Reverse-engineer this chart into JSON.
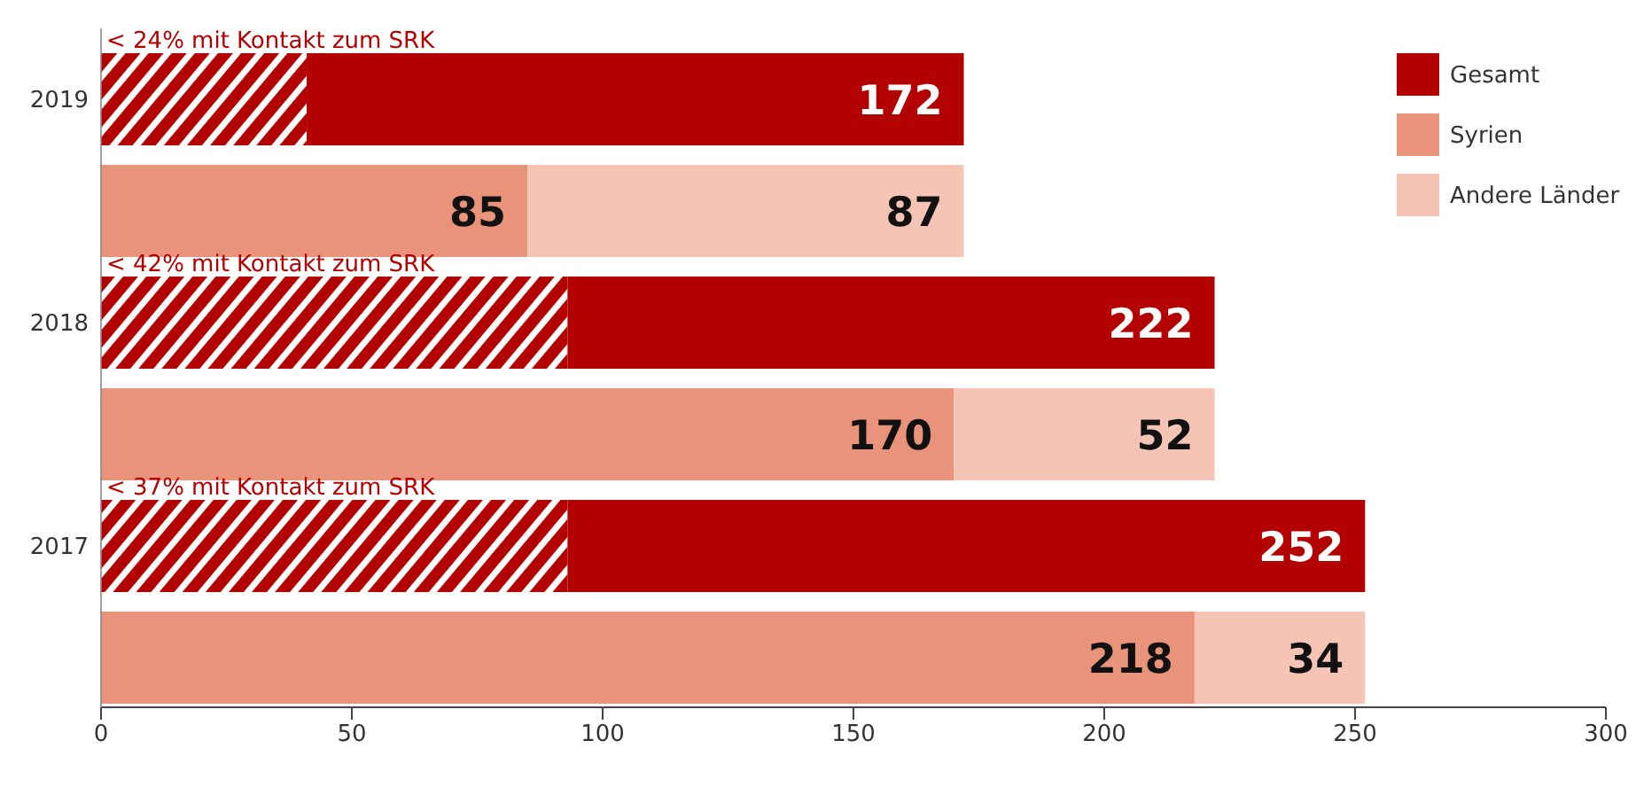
{
  "chart_data": {
    "type": "bar",
    "orientation": "horizontal",
    "stacked": true,
    "categories": [
      "2019",
      null,
      "2018",
      null,
      "2017",
      null
    ],
    "series": [
      {
        "color": "#b30000",
        "values": [
          41,
          null,
          93,
          null,
          93,
          null
        ]
      },
      {
        "name": "Gesamt",
        "color": "#b30000",
        "values": [
          131,
          null,
          129,
          null,
          159,
          null
        ]
      },
      {
        "name": "Syrien",
        "color": "#e8937a",
        "values": [
          null,
          85,
          null,
          170,
          null,
          218
        ],
        "value_labels": [
          null,
          "85",
          null,
          "170",
          null,
          "218"
        ]
      },
      {
        "name": "Andere Länder",
        "color": "#f5c4b4",
        "values": [
          null,
          87,
          null,
          52,
          null,
          34
        ],
        "value_labels": [
          null,
          "87",
          null,
          "52",
          null,
          "34"
        ]
      }
    ],
    "totals": [
      "172",
      null,
      "222",
      null,
      "252",
      null
    ],
    "annotations": [
      "< 24% mit Kontakt zum SRK",
      "< 42% mit Kontakt zum SRK",
      "< 37% mit Kontakt zum SRK"
    ],
    "xlim": [
      0,
      300
    ],
    "xticks": [
      0,
      50,
      100,
      150,
      200,
      250,
      300
    ],
    "legend": "top right",
    "grid": false
  }
}
